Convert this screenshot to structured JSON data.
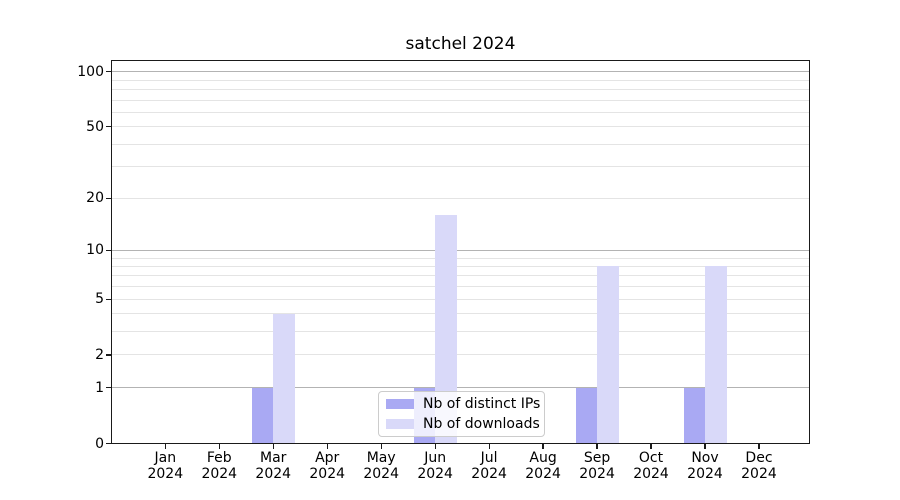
{
  "title": "satchel 2024",
  "chart_data": {
    "type": "bar",
    "title": "satchel 2024",
    "categories": [
      "Jan",
      "Feb",
      "Mar",
      "Apr",
      "May",
      "Jun",
      "Jul",
      "Aug",
      "Sep",
      "Oct",
      "Nov",
      "Dec"
    ],
    "year_label": "2024",
    "series": [
      {
        "name": "Nb of distinct IPs",
        "color": "#a9a9f3",
        "values": [
          0,
          0,
          1,
          0,
          0,
          1,
          0,
          0,
          1,
          0,
          1,
          0
        ]
      },
      {
        "name": "Nb of downloads",
        "color": "#d9d9f9",
        "values": [
          0,
          0,
          4,
          0,
          0,
          16,
          0,
          0,
          8,
          0,
          8,
          0
        ]
      }
    ],
    "xlabel": "",
    "ylabel": "",
    "y_scale": "log1p",
    "y_tick_values": [
      0,
      1,
      2,
      5,
      10,
      20,
      50,
      100
    ],
    "y_major_gridlines": [
      1,
      10,
      100
    ],
    "y_minor_gridlines": [
      2,
      3,
      4,
      5,
      6,
      7,
      8,
      9,
      20,
      30,
      40,
      50,
      60,
      70,
      80,
      90
    ],
    "ylim": [
      0,
      117
    ],
    "grid": "both",
    "legend_position": "lower center",
    "colors": {
      "major_grid": "#b3b3b3",
      "minor_grid": "#e4e4e4",
      "axis": "#1a1a1a",
      "text": "#000000",
      "background": "#ffffff"
    }
  }
}
